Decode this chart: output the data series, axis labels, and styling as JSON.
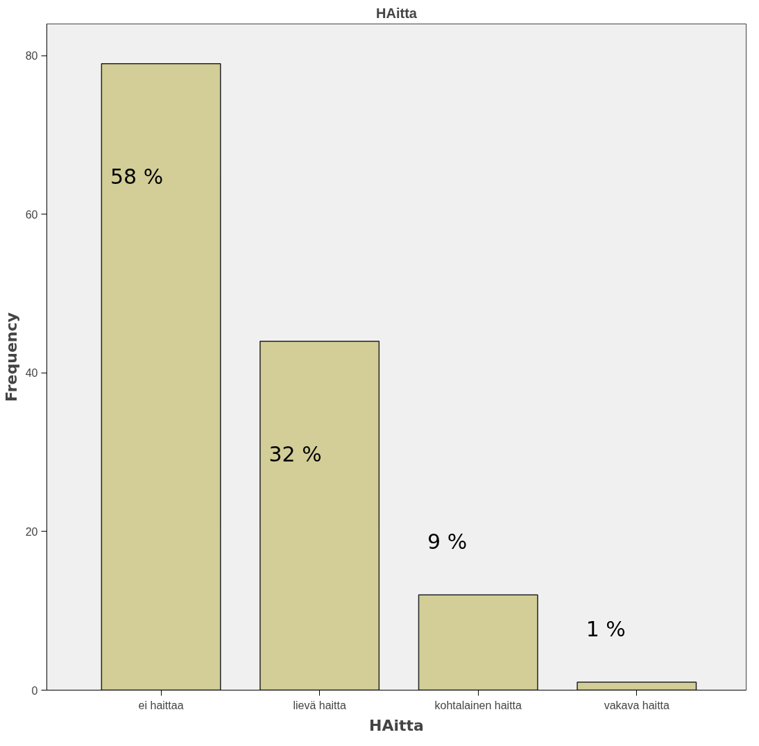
{
  "chart_data": {
    "type": "bar",
    "title": "HAitta",
    "xlabel": "HAitta",
    "ylabel": "Frequency",
    "categories": [
      "ei haittaa",
      "lievä haitta",
      "kohtalainen haitta",
      "vakava haitta"
    ],
    "values": [
      79,
      44,
      12,
      1
    ],
    "annotations": [
      "58 %",
      "32 %",
      "9 %",
      "1 %"
    ],
    "color": "#d3ce97",
    "ylim": [
      0,
      84
    ],
    "yticks": [
      0,
      20,
      40,
      60,
      80
    ],
    "grid": false
  }
}
